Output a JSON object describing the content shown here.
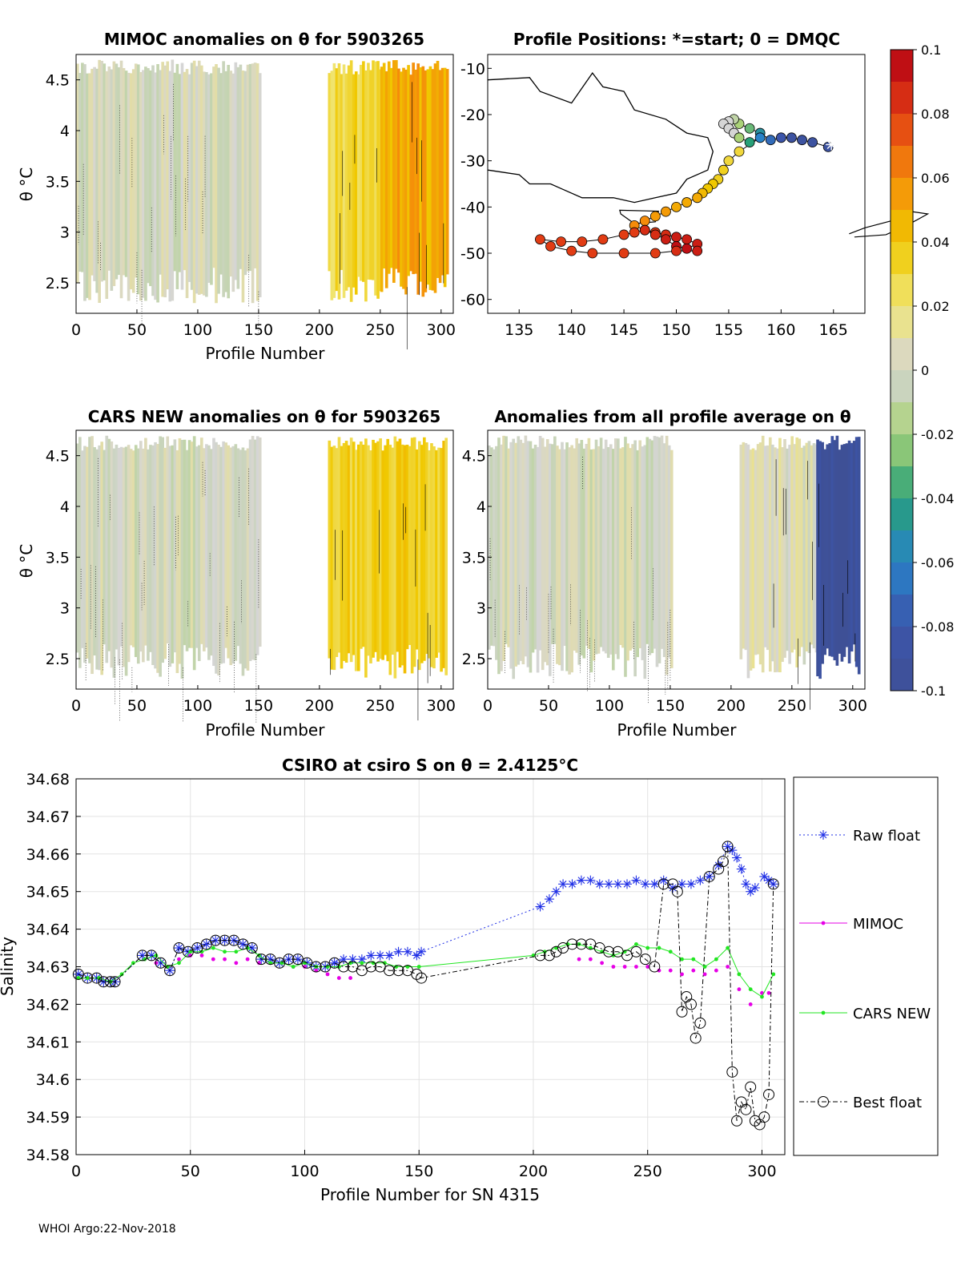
{
  "figure_id": "5903265",
  "footer": "WHOI Argo:22-Nov-2018",
  "colorbar": {
    "ticks": [
      "0.1",
      "0.08",
      "0.06",
      "0.04",
      "0.02",
      "0",
      "-0.02",
      "-0.04",
      "-0.06",
      "-0.08",
      "-0.1"
    ],
    "range": [
      -0.1,
      0.1
    ]
  },
  "panels": {
    "mimoc": {
      "title": "MIMOC anomalies on θ  for 5903265",
      "xlabel": "Profile Number",
      "ylabel": "θ °C",
      "xticks": [
        "0",
        "50",
        "100",
        "150",
        "200",
        "250",
        "300"
      ],
      "yticks": [
        "4.5",
        "4",
        "3.5",
        "3",
        "2.5"
      ]
    },
    "positions": {
      "title": "Profile Positions: *=start; 0 = DMQC",
      "xticks": [
        "135",
        "140",
        "145",
        "150",
        "155",
        "160",
        "165"
      ],
      "yticks": [
        "-10",
        "-20",
        "-30",
        "-40",
        "-50",
        "-60"
      ]
    },
    "cars": {
      "title": "CARS NEW anomalies on θ for 5903265",
      "xlabel": "Profile Number",
      "ylabel": "θ °C",
      "xticks": [
        "0",
        "50",
        "100",
        "150",
        "200",
        "250",
        "300"
      ],
      "yticks": [
        "4.5",
        "4",
        "3.5",
        "3",
        "2.5"
      ]
    },
    "allavg": {
      "title": "Anomalies from all profile average on θ",
      "xlabel": "Profile Number",
      "xticks": [
        "0",
        "50",
        "100",
        "150",
        "200",
        "250",
        "300"
      ],
      "yticks": [
        "4.5",
        "4",
        "3.5",
        "3",
        "2.5"
      ]
    }
  },
  "chart_data": [
    {
      "type": "heatmap",
      "title": "MIMOC anomalies on θ  for 5903265",
      "xlabel": "Profile Number",
      "ylabel": "θ °C",
      "xlim": [
        0,
        310
      ],
      "ylim": [
        2.2,
        4.75
      ],
      "data_gap": [
        152,
        207
      ],
      "segments": [
        {
          "x_range": [
            0,
            152
          ],
          "anomaly": 0.0
        },
        {
          "x_range": [
            207,
            250
          ],
          "anomaly": 0.03
        },
        {
          "x_range": [
            250,
            305
          ],
          "anomaly": 0.05
        }
      ]
    },
    {
      "type": "scatter",
      "title": "Profile Positions: *=start; 0 = DMQC",
      "xlim": [
        132,
        168
      ],
      "ylim": [
        -63,
        -7
      ],
      "start": {
        "lon": 164.8,
        "lat": -26.5
      },
      "points_lon": [
        164.5,
        163,
        162,
        161,
        160,
        159,
        158,
        157,
        156,
        155.5,
        155,
        154.5,
        155,
        155.5,
        156,
        157,
        158,
        156,
        155,
        154.5,
        154,
        153.5,
        153,
        152.5,
        152,
        151,
        150,
        149,
        148,
        147,
        146,
        147,
        148,
        149,
        150,
        151,
        152,
        151,
        150,
        149,
        148,
        147,
        146,
        145,
        143,
        141,
        139,
        137,
        138,
        140,
        142,
        145,
        148,
        150,
        152
      ],
      "points_lat": [
        -27,
        -26,
        -25.5,
        -25,
        -25,
        -25.5,
        -24,
        -23,
        -22,
        -21,
        -21.5,
        -22,
        -23,
        -24,
        -25,
        -26,
        -25,
        -28,
        -30,
        -32,
        -34,
        -35,
        -36,
        -37,
        -38,
        -39,
        -40,
        -41,
        -42,
        -43,
        -44,
        -45,
        -45.5,
        -46,
        -46.5,
        -47,
        -48,
        -49,
        -48.5,
        -47,
        -46,
        -45,
        -45.5,
        -46,
        -47,
        -47.5,
        -47.5,
        -47,
        -48.5,
        -49.5,
        -50,
        -50,
        -50,
        -49.5,
        -49.5
      ],
      "point_anomaly": [
        -0.09,
        -0.09,
        -0.09,
        -0.09,
        -0.08,
        -0.07,
        -0.05,
        -0.03,
        -0.02,
        -0.01,
        0.0,
        0.0,
        0.0,
        0.0,
        -0.02,
        -0.04,
        -0.06,
        0.03,
        0.03,
        0.035,
        0.035,
        0.04,
        0.04,
        0.045,
        0.05,
        0.05,
        0.05,
        0.055,
        0.055,
        0.06,
        0.06,
        0.07,
        0.08,
        0.085,
        0.09,
        0.09,
        0.09,
        0.095,
        0.095,
        0.09,
        0.085,
        0.085,
        0.08,
        0.08,
        0.08,
        0.08,
        0.08,
        0.08,
        0.08,
        0.08,
        0.08,
        0.08,
        0.08,
        0.085,
        0.09
      ]
    },
    {
      "type": "heatmap",
      "title": "CARS NEW anomalies on θ for 5903265",
      "xlabel": "Profile Number",
      "ylabel": "θ °C",
      "xlim": [
        0,
        310
      ],
      "ylim": [
        2.2,
        4.75
      ],
      "data_gap": [
        152,
        207
      ],
      "segments": [
        {
          "x_range": [
            0,
            152
          ],
          "anomaly": 0.0
        },
        {
          "x_range": [
            207,
            305
          ],
          "anomaly": 0.035
        }
      ]
    },
    {
      "type": "heatmap",
      "title": "Anomalies from all profile average on θ",
      "xlabel": "Profile Number",
      "xlim": [
        0,
        310
      ],
      "ylim": [
        2.2,
        4.75
      ],
      "data_gap": [
        152,
        207
      ],
      "segments": [
        {
          "x_range": [
            0,
            152
          ],
          "anomaly": 0.0
        },
        {
          "x_range": [
            207,
            270
          ],
          "anomaly": 0.005
        },
        {
          "x_range": [
            270,
            305
          ],
          "anomaly": -0.095
        }
      ]
    },
    {
      "type": "line",
      "title": "CSIRO at csiro S on θ = 2.4125°C",
      "xlabel": "Profile Number for SN 4315",
      "ylabel": "Salinity",
      "xlim": [
        0,
        310
      ],
      "ylim": [
        34.58,
        34.68
      ],
      "yticks": [
        "34.68",
        "34.67",
        "34.66",
        "34.65",
        "34.64",
        "34.63",
        "34.62",
        "34.61",
        "34.6",
        "34.59",
        "34.58"
      ],
      "xticks": [
        "0",
        "50",
        "100",
        "150",
        "200",
        "250",
        "300"
      ],
      "grid": true,
      "legend": "right-outside",
      "series": [
        {
          "name": "Raw float",
          "x": [
            1,
            5,
            9,
            12,
            15,
            17,
            29,
            33,
            37,
            41,
            45,
            49,
            53,
            57,
            61,
            65,
            69,
            73,
            77,
            81,
            85,
            89,
            93,
            97,
            101,
            105,
            109,
            113,
            117,
            121,
            125,
            129,
            133,
            137,
            141,
            145,
            149,
            151,
            203,
            207,
            210,
            213,
            217,
            221,
            225,
            229,
            233,
            237,
            241,
            245,
            249,
            253,
            257,
            261,
            265,
            269,
            273,
            277,
            281,
            285,
            287,
            289,
            291,
            293,
            295,
            297,
            301,
            303,
            305
          ],
          "y": [
            34.628,
            34.627,
            34.627,
            34.626,
            34.626,
            34.626,
            34.633,
            34.633,
            34.631,
            34.629,
            34.635,
            34.634,
            34.635,
            34.636,
            34.637,
            34.637,
            34.637,
            34.636,
            34.635,
            34.632,
            34.632,
            34.631,
            34.632,
            34.632,
            34.631,
            34.63,
            34.63,
            34.631,
            34.632,
            34.632,
            34.632,
            34.633,
            34.633,
            34.633,
            34.634,
            34.634,
            34.633,
            34.634,
            34.646,
            34.648,
            34.65,
            34.652,
            34.652,
            34.653,
            34.653,
            34.652,
            34.652,
            34.652,
            34.652,
            34.653,
            34.652,
            34.652,
            34.653,
            34.651,
            34.652,
            34.652,
            34.653,
            34.654,
            34.657,
            34.662,
            34.661,
            34.659,
            34.656,
            34.652,
            34.65,
            34.651,
            34.654,
            34.653,
            34.652
          ]
        },
        {
          "name": "MIMOC",
          "x": [
            30,
            35,
            40,
            45,
            50,
            55,
            60,
            65,
            70,
            75,
            80,
            85,
            90,
            95,
            100,
            105,
            110,
            115,
            120,
            220,
            225,
            230,
            235,
            240,
            245,
            250,
            255,
            260,
            265,
            270,
            275,
            280,
            285,
            290,
            295,
            300,
            303
          ],
          "y": [
            34.632,
            34.631,
            34.63,
            34.632,
            34.633,
            34.633,
            34.632,
            34.632,
            34.631,
            34.632,
            34.631,
            34.631,
            34.631,
            34.63,
            34.63,
            34.629,
            34.628,
            34.627,
            34.627,
            34.632,
            34.632,
            34.631,
            34.63,
            34.63,
            34.63,
            34.63,
            34.629,
            34.629,
            34.628,
            34.629,
            34.628,
            34.629,
            34.63,
            34.624,
            34.62,
            34.623,
            34.623
          ]
        },
        {
          "name": "CARS NEW",
          "x": [
            1,
            5,
            10,
            15,
            20,
            25,
            30,
            35,
            40,
            45,
            50,
            55,
            60,
            65,
            70,
            75,
            80,
            85,
            90,
            95,
            100,
            105,
            110,
            115,
            120,
            125,
            130,
            135,
            140,
            145,
            150,
            200,
            205,
            210,
            215,
            220,
            225,
            230,
            235,
            240,
            245,
            250,
            255,
            260,
            265,
            270,
            275,
            280,
            285,
            290,
            295,
            300,
            305
          ],
          "y": [
            34.627,
            34.627,
            34.627,
            34.626,
            34.628,
            34.631,
            34.632,
            34.633,
            34.63,
            34.631,
            34.634,
            34.634,
            34.635,
            34.634,
            34.634,
            34.635,
            34.633,
            34.631,
            34.631,
            34.63,
            34.631,
            34.63,
            34.63,
            34.63,
            34.631,
            34.631,
            34.631,
            34.631,
            34.63,
            34.63,
            34.63,
            34.633,
            34.634,
            34.635,
            34.636,
            34.636,
            34.635,
            34.634,
            34.633,
            34.634,
            34.636,
            34.635,
            34.635,
            34.634,
            34.632,
            34.632,
            34.63,
            34.632,
            34.635,
            34.628,
            34.624,
            34.622,
            34.628
          ]
        },
        {
          "name": "Best float",
          "x": [
            1,
            5,
            9,
            12,
            15,
            17,
            29,
            33,
            37,
            41,
            45,
            49,
            53,
            57,
            61,
            65,
            69,
            73,
            77,
            81,
            85,
            89,
            93,
            97,
            101,
            105,
            109,
            113,
            117,
            121,
            125,
            129,
            133,
            137,
            141,
            145,
            149,
            151,
            203,
            207,
            210,
            213,
            217,
            221,
            225,
            229,
            233,
            237,
            241,
            245,
            249,
            253,
            257,
            261,
            263,
            265,
            267,
            269,
            271,
            273,
            277,
            281,
            283,
            285,
            287,
            289,
            291,
            293,
            295,
            297,
            299,
            301,
            303,
            305
          ],
          "y": [
            34.628,
            34.627,
            34.627,
            34.626,
            34.626,
            34.626,
            34.633,
            34.633,
            34.631,
            34.629,
            34.635,
            34.634,
            34.635,
            34.636,
            34.637,
            34.637,
            34.637,
            34.636,
            34.635,
            34.632,
            34.632,
            34.631,
            34.632,
            34.632,
            34.631,
            34.63,
            34.63,
            34.631,
            34.63,
            34.63,
            34.629,
            34.63,
            34.63,
            34.629,
            34.629,
            34.629,
            34.628,
            34.627,
            34.633,
            34.633,
            34.634,
            34.635,
            34.636,
            34.636,
            34.636,
            34.635,
            34.634,
            34.634,
            34.633,
            34.634,
            34.632,
            34.63,
            34.652,
            34.652,
            34.65,
            34.618,
            34.622,
            34.62,
            34.611,
            34.615,
            34.654,
            34.656,
            34.658,
            34.662,
            34.602,
            34.589,
            34.594,
            34.592,
            34.598,
            34.589,
            34.588,
            34.59,
            34.596,
            34.652
          ]
        }
      ]
    }
  ],
  "legend": [
    "Raw float",
    "MIMOC",
    "CARS NEW",
    "Best float"
  ],
  "bottom": {
    "title": "CSIRO at csiro S on θ = 2.4125°C",
    "xlabel": "Profile Number for SN 4315",
    "ylabel": "Salinity"
  }
}
